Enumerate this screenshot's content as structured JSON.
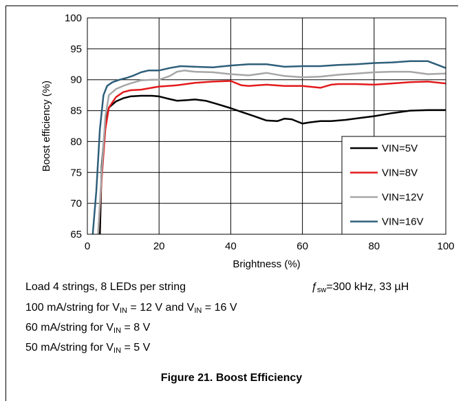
{
  "chart_data": {
    "type": "line",
    "xlabel": "Brightness (%)",
    "ylabel": "Boost efficiency (%)",
    "xlim": [
      0,
      100
    ],
    "ylim": [
      65,
      100
    ],
    "xticks": [
      0,
      20,
      40,
      60,
      80,
      100
    ],
    "yticks": [
      65,
      70,
      75,
      80,
      85,
      90,
      95,
      100
    ],
    "xtick_labels": [
      "0",
      "20",
      "40",
      "60",
      "80",
      "100"
    ],
    "ytick_labels": [
      "65",
      "70",
      "75",
      "80",
      "85",
      "90",
      "95",
      "100"
    ],
    "grid": true,
    "legend_position": "bottom-right",
    "series": [
      {
        "name": "VIN=5V",
        "color": "#000000",
        "x": [
          3.5,
          4,
          5,
          6,
          8,
          10,
          12,
          15,
          18,
          20,
          22,
          25,
          28,
          30,
          33,
          36,
          40,
          43,
          46,
          50,
          53,
          55,
          57,
          60,
          62,
          65,
          68,
          72,
          76,
          80,
          85,
          90,
          95,
          100
        ],
        "y": [
          65,
          76,
          83,
          85.5,
          86.5,
          87,
          87.3,
          87.4,
          87.4,
          87.3,
          87,
          86.6,
          86.7,
          86.8,
          86.6,
          86.1,
          85.4,
          84.8,
          84.2,
          83.4,
          83.3,
          83.7,
          83.6,
          82.9,
          83.1,
          83.3,
          83.3,
          83.5,
          83.8,
          84.1,
          84.6,
          85,
          85.1,
          85.1
        ]
      },
      {
        "name": "VIN=8V",
        "color": "#e31a1c",
        "x": [
          3,
          4,
          5,
          6,
          8,
          10,
          12,
          15,
          18,
          20,
          25,
          30,
          35,
          40,
          43,
          45,
          50,
          55,
          60,
          65,
          68,
          70,
          75,
          80,
          85,
          90,
          95,
          100
        ],
        "y": [
          65,
          74,
          82,
          85.5,
          87.2,
          88,
          88.3,
          88.4,
          88.7,
          88.9,
          89.1,
          89.5,
          89.7,
          89.8,
          89.1,
          89.0,
          89.2,
          89.0,
          89.0,
          88.7,
          89.2,
          89.3,
          89.3,
          89.2,
          89.4,
          89.6,
          89.7,
          89.4
        ]
      },
      {
        "name": "VIN=12V",
        "color": "#a6a6a6",
        "x": [
          3,
          4,
          5,
          6,
          8,
          10,
          12,
          15,
          18,
          20,
          23,
          25,
          27,
          30,
          35,
          40,
          45,
          50,
          55,
          60,
          65,
          70,
          75,
          80,
          85,
          90,
          95,
          100
        ],
        "y": [
          65,
          75,
          84,
          87.5,
          88.5,
          89,
          89.4,
          89.9,
          90,
          90,
          90.6,
          91.3,
          91.5,
          91.3,
          91.2,
          90.9,
          90.7,
          91.1,
          90.6,
          90.4,
          90.5,
          90.8,
          91.0,
          91.2,
          91.3,
          91.3,
          90.9,
          91.0
        ]
      },
      {
        "name": "VIN=16V",
        "color": "#2e5e7a",
        "x": [
          1.5,
          2.5,
          3.5,
          4.5,
          5.5,
          7,
          9,
          11,
          13,
          15,
          17,
          20,
          23,
          26,
          30,
          35,
          40,
          45,
          50,
          55,
          60,
          65,
          70,
          75,
          80,
          85,
          90,
          95,
          100
        ],
        "y": [
          65,
          72,
          82,
          87.5,
          89,
          89.6,
          90,
          90.3,
          90.7,
          91.2,
          91.5,
          91.5,
          91.9,
          92.2,
          92.1,
          92,
          92.3,
          92.5,
          92.5,
          92.1,
          92.2,
          92.2,
          92.4,
          92.5,
          92.7,
          92.8,
          93,
          93,
          91.9
        ]
      }
    ]
  },
  "notes": {
    "load": "Load 4 strings, 8 LEDs per string",
    "fsw_symbol": "ƒ",
    "fsw_sub": "sw",
    "fsw_rest": "=300 kHz, 33 µH",
    "line2_a": "100 mA/string for V",
    "line2_b": " = 12 V and V",
    "line2_c": " = 16 V",
    "line3_a": "60 mA/string for V",
    "line3_b": " = 8 V",
    "line4_a": "50 mA/string for V",
    "line4_b": " = 5 V",
    "sub_in": "IN"
  },
  "caption": "Figure 21. Boost Efficiency"
}
